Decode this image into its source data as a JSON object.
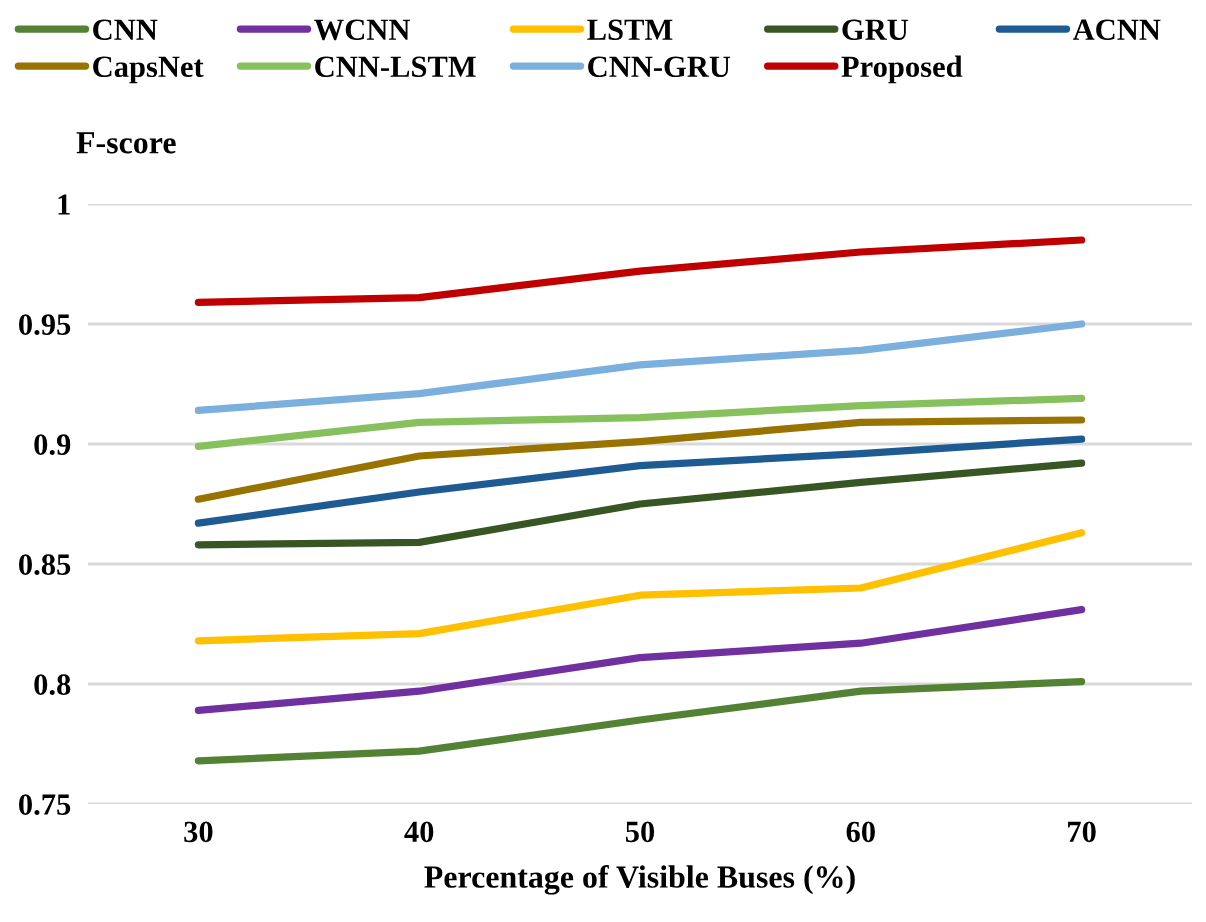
{
  "chart_data": {
    "type": "line",
    "xlabel": "Percentage of Visible Buses (%)",
    "ylabel": "F-score",
    "categories": [
      "30",
      "40",
      "50",
      "60",
      "70"
    ],
    "ylim": [
      0.75,
      1
    ],
    "yticks": [
      0.75,
      0.8,
      0.85,
      0.9,
      0.95,
      1
    ],
    "grid": "y",
    "legend": "top",
    "marker": "none",
    "line_style": "solid",
    "series": [
      {
        "name": "CNN",
        "color": "#548235",
        "values": [
          0.768,
          0.772,
          0.785,
          0.797,
          0.801
        ]
      },
      {
        "name": "WCNN",
        "color": "#7030a0",
        "values": [
          0.789,
          0.797,
          0.811,
          0.817,
          0.831
        ]
      },
      {
        "name": "LSTM",
        "color": "#ffc000",
        "values": [
          0.818,
          0.821,
          0.837,
          0.84,
          0.863
        ]
      },
      {
        "name": "GRU",
        "color": "#375623",
        "values": [
          0.858,
          0.859,
          0.875,
          0.884,
          0.892
        ]
      },
      {
        "name": "ACNN",
        "color": "#1f5b93",
        "values": [
          0.867,
          0.88,
          0.891,
          0.896,
          0.902
        ]
      },
      {
        "name": "CapsNet",
        "color": "#997300",
        "values": [
          0.877,
          0.895,
          0.901,
          0.909,
          0.91
        ]
      },
      {
        "name": "CNN-LSTM",
        "color": "#86c15e",
        "values": [
          0.899,
          0.909,
          0.911,
          0.916,
          0.919
        ]
      },
      {
        "name": "CNN-GRU",
        "color": "#7bafde",
        "values": [
          0.914,
          0.921,
          0.933,
          0.939,
          0.95
        ]
      },
      {
        "name": "Proposed",
        "color": "#c00000",
        "values": [
          0.959,
          0.961,
          0.972,
          0.98,
          0.985
        ]
      }
    ]
  }
}
